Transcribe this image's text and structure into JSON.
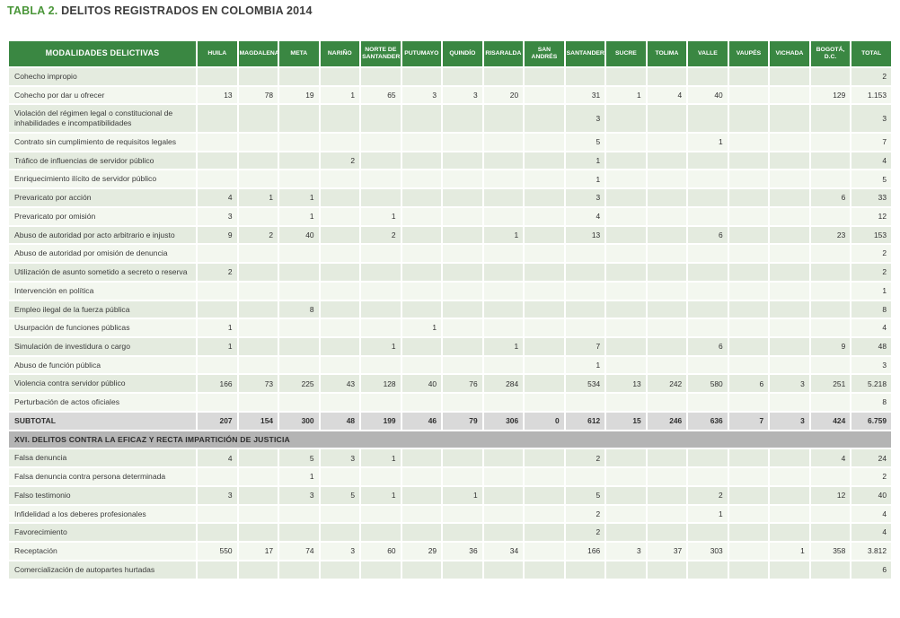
{
  "title": {
    "prefix": "TABLA 2.",
    "text": " DELITOS REGISTRADOS EN COLOMBIA 2014"
  },
  "colors": {
    "header_green": "#3a8742",
    "title_green": "#4a9639",
    "row_stripe_dark": "#e4ebdf",
    "row_stripe_light": "#f3f7ef",
    "subtotal_bg": "#d9d9d9",
    "section_bg": "#b4b4b4",
    "text": "#3b3b3b"
  },
  "table": {
    "label_header": "MODALIDADES DELICTIVAS",
    "columns": [
      "HUILA",
      "MAGDALENA",
      "META",
      "NARIÑO",
      "NORTE DE SANTANDER",
      "PUTUMAYO",
      "QUINDÍO",
      "RISARALDA",
      "SAN ANDRÉS",
      "SANTANDER",
      "SUCRE",
      "TOLIMA",
      "VALLE",
      "VAUPÉS",
      "VICHADA",
      "BOGOTÁ, D.C.",
      "TOTAL"
    ],
    "rows": [
      {
        "type": "data",
        "label": "Cohecho impropio",
        "values": [
          "",
          "",
          "",
          "",
          "",
          "",
          "",
          "",
          "",
          "",
          "",
          "",
          "",
          "",
          "",
          "",
          "2"
        ]
      },
      {
        "type": "data",
        "label": "Cohecho por dar u ofrecer",
        "values": [
          "13",
          "78",
          "19",
          "1",
          "65",
          "3",
          "3",
          "20",
          "",
          "31",
          "1",
          "4",
          "40",
          "",
          "",
          "129",
          "1.153"
        ]
      },
      {
        "type": "data",
        "label": "Violación del régimen legal o constitucional de inhabilidades e incompatibilidades",
        "values": [
          "",
          "",
          "",
          "",
          "",
          "",
          "",
          "",
          "",
          "3",
          "",
          "",
          "",
          "",
          "",
          "",
          "3"
        ]
      },
      {
        "type": "data",
        "label": "Contrato sin cumplimiento de requisitos legales",
        "values": [
          "",
          "",
          "",
          "",
          "",
          "",
          "",
          "",
          "",
          "5",
          "",
          "",
          "1",
          "",
          "",
          "",
          "7"
        ]
      },
      {
        "type": "data",
        "label": "Tráfico de influencias de servidor público",
        "values": [
          "",
          "",
          "",
          "2",
          "",
          "",
          "",
          "",
          "",
          "1",
          "",
          "",
          "",
          "",
          "",
          "",
          "4"
        ]
      },
      {
        "type": "data",
        "label": "Enriquecimiento ilícito de servidor público",
        "values": [
          "",
          "",
          "",
          "",
          "",
          "",
          "",
          "",
          "",
          "1",
          "",
          "",
          "",
          "",
          "",
          "",
          "5"
        ]
      },
      {
        "type": "data",
        "label": "Prevaricato por acción",
        "values": [
          "4",
          "1",
          "1",
          "",
          "",
          "",
          "",
          "",
          "",
          "3",
          "",
          "",
          "",
          "",
          "",
          "6",
          "33"
        ]
      },
      {
        "type": "data",
        "label": "Prevaricato por omisión",
        "values": [
          "3",
          "",
          "1",
          "",
          "1",
          "",
          "",
          "",
          "",
          "4",
          "",
          "",
          "",
          "",
          "",
          "",
          "12"
        ]
      },
      {
        "type": "data",
        "label": "Abuso de autoridad por acto arbitrario e injusto",
        "values": [
          "9",
          "2",
          "40",
          "",
          "2",
          "",
          "",
          "1",
          "",
          "13",
          "",
          "",
          "6",
          "",
          "",
          "23",
          "153"
        ]
      },
      {
        "type": "data",
        "label": "Abuso de autoridad por omisión de denuncia",
        "values": [
          "",
          "",
          "",
          "",
          "",
          "",
          "",
          "",
          "",
          "",
          "",
          "",
          "",
          "",
          "",
          "",
          "2"
        ]
      },
      {
        "type": "data",
        "label": "Utilización de asunto sometido a secreto o reserva",
        "values": [
          "2",
          "",
          "",
          "",
          "",
          "",
          "",
          "",
          "",
          "",
          "",
          "",
          "",
          "",
          "",
          "",
          "2"
        ]
      },
      {
        "type": "data",
        "label": "Intervención en política",
        "values": [
          "",
          "",
          "",
          "",
          "",
          "",
          "",
          "",
          "",
          "",
          "",
          "",
          "",
          "",
          "",
          "",
          "1"
        ]
      },
      {
        "type": "data",
        "label": "Empleo ilegal de la fuerza pública",
        "values": [
          "",
          "",
          "8",
          "",
          "",
          "",
          "",
          "",
          "",
          "",
          "",
          "",
          "",
          "",
          "",
          "",
          "8"
        ]
      },
      {
        "type": "data",
        "label": "Usurpación de funciones públicas",
        "values": [
          "1",
          "",
          "",
          "",
          "",
          "1",
          "",
          "",
          "",
          "",
          "",
          "",
          "",
          "",
          "",
          "",
          "4"
        ]
      },
      {
        "type": "data",
        "label": "Simulación de investidura o cargo",
        "values": [
          "1",
          "",
          "",
          "",
          "1",
          "",
          "",
          "1",
          "",
          "7",
          "",
          "",
          "6",
          "",
          "",
          "9",
          "48"
        ]
      },
      {
        "type": "data",
        "label": "Abuso de función pública",
        "values": [
          "",
          "",
          "",
          "",
          "",
          "",
          "",
          "",
          "",
          "1",
          "",
          "",
          "",
          "",
          "",
          "",
          "3"
        ]
      },
      {
        "type": "data",
        "label": "Violencia contra servidor público",
        "values": [
          "166",
          "73",
          "225",
          "43",
          "128",
          "40",
          "76",
          "284",
          "",
          "534",
          "13",
          "242",
          "580",
          "6",
          "3",
          "251",
          "5.218"
        ]
      },
      {
        "type": "data",
        "label": "Perturbación de actos oficiales",
        "values": [
          "",
          "",
          "",
          "",
          "",
          "",
          "",
          "",
          "",
          "",
          "",
          "",
          "",
          "",
          "",
          "",
          "8"
        ]
      },
      {
        "type": "subtotal",
        "label": "SUBTOTAL",
        "values": [
          "207",
          "154",
          "300",
          "48",
          "199",
          "46",
          "79",
          "306",
          "0",
          "612",
          "15",
          "246",
          "636",
          "7",
          "3",
          "424",
          "6.759"
        ]
      },
      {
        "type": "section",
        "label": "XVI. DELITOS CONTRA LA EFICAZ Y RECTA IMPARTICIÓN DE JUSTICIA"
      },
      {
        "type": "data",
        "label": "Falsa denuncia",
        "values": [
          "4",
          "",
          "5",
          "3",
          "1",
          "",
          "",
          "",
          "",
          "2",
          "",
          "",
          "",
          "",
          "",
          "4",
          "24"
        ]
      },
      {
        "type": "data",
        "label": "Falsa denuncia contra persona determinada",
        "values": [
          "",
          "",
          "1",
          "",
          "",
          "",
          "",
          "",
          "",
          "",
          "",
          "",
          "",
          "",
          "",
          "",
          "2"
        ]
      },
      {
        "type": "data",
        "label": "Falso testimonio",
        "values": [
          "3",
          "",
          "3",
          "5",
          "1",
          "",
          "1",
          "",
          "",
          "5",
          "",
          "",
          "2",
          "",
          "",
          "12",
          "40"
        ]
      },
      {
        "type": "data",
        "label": "Infidelidad a los deberes profesionales",
        "values": [
          "",
          "",
          "",
          "",
          "",
          "",
          "",
          "",
          "",
          "2",
          "",
          "",
          "1",
          "",
          "",
          "",
          "4"
        ]
      },
      {
        "type": "data",
        "label": "Favorecimiento",
        "values": [
          "",
          "",
          "",
          "",
          "",
          "",
          "",
          "",
          "",
          "2",
          "",
          "",
          "",
          "",
          "",
          "",
          "4"
        ]
      },
      {
        "type": "data",
        "label": "Receptación",
        "values": [
          "550",
          "17",
          "74",
          "3",
          "60",
          "29",
          "36",
          "34",
          "",
          "166",
          "3",
          "37",
          "303",
          "",
          "1",
          "358",
          "3.812"
        ]
      },
      {
        "type": "data",
        "label": "Comercialización de autopartes hurtadas",
        "values": [
          "",
          "",
          "",
          "",
          "",
          "",
          "",
          "",
          "",
          "",
          "",
          "",
          "",
          "",
          "",
          "",
          "6"
        ]
      }
    ]
  }
}
